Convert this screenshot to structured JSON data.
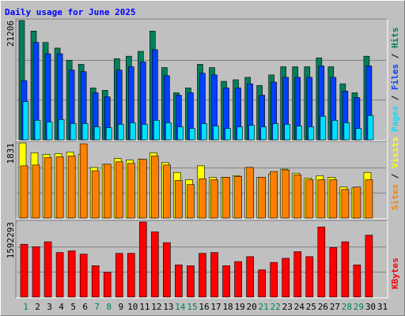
{
  "title": "Daily usage for June 2025",
  "chart_data": [
    {
      "type": "bar",
      "ylim": [
        0,
        21206
      ],
      "yticks": [
        21206
      ],
      "grid": true,
      "series": [
        {
          "name": "Hits",
          "color": "#00805c",
          "values": [
            21206,
            19336,
            17316,
            16306,
            14141,
            13420,
            9235,
            8802,
            14430,
            14863,
            15729,
            19336,
            12843,
            8369,
            9235,
            13420,
            12843,
            10390,
            10678,
            11111,
            9668,
            11544,
            12987,
            12987,
            12987,
            14574,
            12987,
            9957,
            8369,
            14863,
            null
          ]
        },
        {
          "name": "Files",
          "color": "#0040ff",
          "values": [
            10534,
            17316,
            15296,
            15296,
            12410,
            12121,
            8369,
            7648,
            12410,
            12987,
            13853,
            16017,
            11400,
            7937,
            8369,
            11833,
            11544,
            9235,
            9235,
            9957,
            7937,
            10245,
            11111,
            11111,
            11111,
            13131,
            11111,
            8658,
            7504,
            13131,
            null
          ]
        },
        {
          "name": "Pages",
          "color": "#00e0ff",
          "values": [
            6782,
            3463,
            3175,
            3608,
            2886,
            2886,
            2309,
            2165,
            2742,
            3030,
            2742,
            3463,
            3030,
            2309,
            2020,
            2886,
            2453,
            2020,
            2309,
            2597,
            2309,
            2886,
            2742,
            2453,
            2309,
            4185,
            3463,
            3030,
            2020,
            4329,
            null
          ]
        }
      ]
    },
    {
      "type": "bar",
      "ylim": [
        0,
        1831
      ],
      "yticks": [
        1831
      ],
      "grid": true,
      "series": [
        {
          "name": "Visits",
          "color": "#ffff00",
          "values": [
            1831,
            1592,
            1552,
            1572,
            1612,
            1552,
            1234,
            1313,
            1453,
            1413,
            1433,
            1592,
            1353,
            1114,
            935,
            1274,
            995,
            995,
            1035,
            1234,
            995,
            1075,
            1194,
            1095,
            975,
            1035,
            995,
            756,
            736,
            1114,
            null
          ]
        },
        {
          "name": "Sites",
          "color": "#ff8000",
          "values": [
            1274,
            1294,
            1473,
            1493,
            1513,
            1811,
            1154,
            1313,
            1373,
            1333,
            1433,
            1513,
            1294,
            916,
            816,
            955,
            935,
            995,
            1015,
            1234,
            995,
            1134,
            1174,
            1055,
            935,
            935,
            935,
            697,
            756,
            935,
            null
          ]
        }
      ]
    },
    {
      "type": "bar",
      "ylim": [
        0,
        1592293
      ],
      "yticks": [
        1592293
      ],
      "grid": true,
      "categories": [
        "1",
        "2",
        "3",
        "4",
        "5",
        "6",
        "7",
        "8",
        "9",
        "10",
        "11",
        "12",
        "13",
        "14",
        "15",
        "16",
        "17",
        "18",
        "19",
        "20",
        "21",
        "22",
        "23",
        "24",
        "25",
        "26",
        "27",
        "28",
        "29",
        "30",
        "31"
      ],
      "category_colors": [
        "#00805c",
        "#000000",
        "#000000",
        "#000000",
        "#000000",
        "#000000",
        "#00805c",
        "#00805c",
        "#000000",
        "#000000",
        "#000000",
        "#000000",
        "#000000",
        "#00805c",
        "#00805c",
        "#000000",
        "#000000",
        "#000000",
        "#000000",
        "#000000",
        "#00805c",
        "#00805c",
        "#000000",
        "#000000",
        "#000000",
        "#000000",
        "#000000",
        "#00805c",
        "#00805c",
        "#000000",
        "#000000"
      ],
      "series": [
        {
          "name": "KBytes",
          "color": "#ff0000",
          "values": [
            1119872,
            1067378,
            1172366,
            944892,
            979888,
            909896,
            664924,
            524940,
            927394,
            927394,
            1592293,
            1382342,
            1154868,
            682422,
            664924,
            927394,
            944892,
            664924,
            752414,
            857402,
            577434,
            734916,
            822406,
            962390,
            857402,
            1487330,
            1049880,
            1172366,
            682422,
            1312350,
            null
          ]
        }
      ]
    }
  ]
}
